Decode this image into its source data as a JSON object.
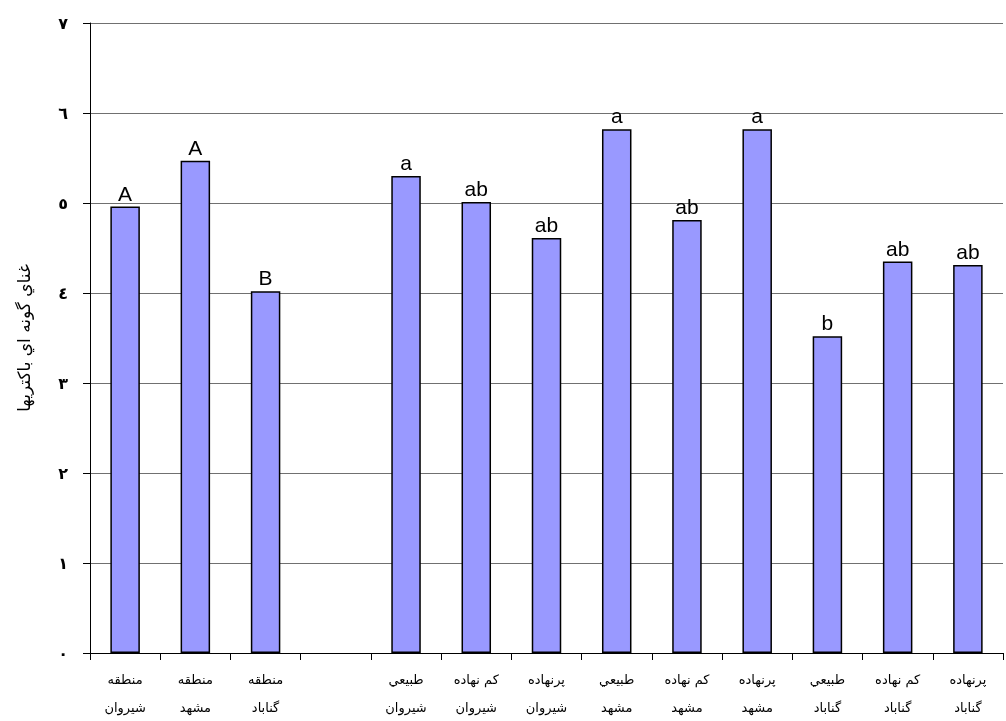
{
  "chart_data": {
    "type": "bar",
    "ylabel": "غناي گونه اي باكتريها",
    "categories": [
      "منطقه\nشيروان",
      "منطقه\nمشهد",
      "منطقه\nگناباد",
      null,
      "طبيعي\nشيروان",
      "كم نهاده\nشيروان",
      "پرنهاده\nشيروان",
      "طبيعي\nمشهد",
      "كم نهاده\nمشهد",
      "پرنهاده\nمشهد",
      "طبيعي\nگناباد",
      "كم نهاده\nگناباد",
      "پرنهاده\nگناباد"
    ],
    "values": [
      4.96,
      5.47,
      4.02,
      null,
      5.3,
      5.01,
      4.61,
      5.82,
      4.81,
      5.82,
      3.52,
      4.35,
      4.31
    ],
    "value_labels": [
      "A",
      "A",
      "B",
      null,
      "a",
      "ab",
      "ab",
      "a",
      "ab",
      "a",
      "b",
      "ab",
      "ab"
    ],
    "color": "#9999ff",
    "ylim": [
      0,
      7
    ],
    "yticks": [
      {
        "value": 0,
        "label": "٠"
      },
      {
        "value": 1,
        "label": "١"
      },
      {
        "value": 2,
        "label": "٢"
      },
      {
        "value": 3,
        "label": "٣"
      },
      {
        "value": 4,
        "label": "٤"
      },
      {
        "value": 5,
        "label": "٥"
      },
      {
        "value": 6,
        "label": "٦"
      },
      {
        "value": 7,
        "label": "٧"
      }
    ],
    "grid": "y"
  }
}
